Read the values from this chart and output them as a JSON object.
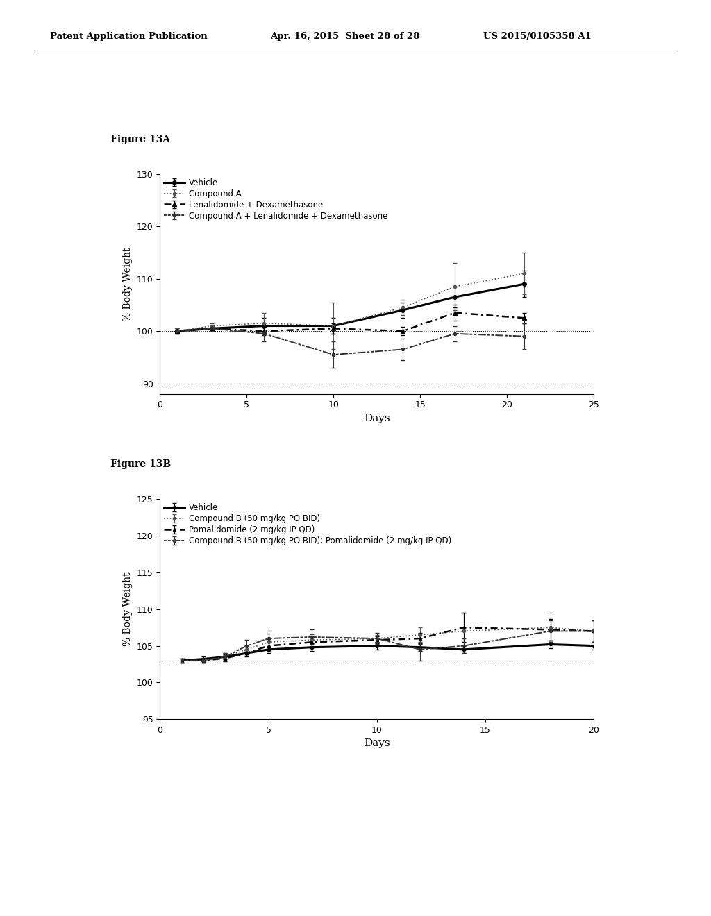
{
  "header_left": "Patent Application Publication",
  "header_mid": "Apr. 16, 2015  Sheet 28 of 28",
  "header_right": "US 2015/0105358 A1",
  "figA_label": "Figure 13A",
  "figB_label": "Figure 13B",
  "figA": {
    "xlabel": "Days",
    "ylabel": "% Body Weight",
    "xlim": [
      0,
      25
    ],
    "ylim": [
      88,
      130
    ],
    "yticks": [
      90,
      100,
      110,
      120,
      130
    ],
    "xticks": [
      0,
      5,
      10,
      15,
      20,
      25
    ],
    "hlines": [
      100,
      90
    ],
    "legend": [
      "Vehicle",
      "Compound A",
      "Lenalidomide + Dexamethasone",
      "Compound A + Lenalidomide + Dexamethasone"
    ],
    "series": {
      "vehicle": {
        "x": [
          1,
          3,
          6,
          10,
          14,
          17,
          21
        ],
        "y": [
          100.0,
          100.5,
          101.0,
          101.0,
          104.0,
          106.5,
          109.0
        ],
        "yerr": [
          0.5,
          0.5,
          1.5,
          1.5,
          1.5,
          2.0,
          2.5
        ]
      },
      "compound_a": {
        "x": [
          1,
          3,
          6,
          10,
          14,
          17,
          21
        ],
        "y": [
          100.0,
          101.0,
          101.5,
          101.0,
          104.5,
          108.5,
          111.0
        ],
        "yerr": [
          0.5,
          0.5,
          2.0,
          4.5,
          1.5,
          4.5,
          4.0
        ]
      },
      "lenali_dexa": {
        "x": [
          1,
          3,
          6,
          10,
          14,
          17,
          21
        ],
        "y": [
          100.0,
          100.5,
          100.0,
          100.5,
          100.0,
          103.5,
          102.5
        ],
        "yerr": [
          0.3,
          0.5,
          0.8,
          1.0,
          0.8,
          1.5,
          1.0
        ]
      },
      "compound_a_lenali_dexa": {
        "x": [
          1,
          3,
          6,
          10,
          14,
          17,
          21
        ],
        "y": [
          100.0,
          100.5,
          99.5,
          95.5,
          96.5,
          99.5,
          99.0
        ],
        "yerr": [
          0.3,
          0.5,
          1.5,
          2.5,
          2.0,
          1.5,
          2.5
        ]
      }
    }
  },
  "figB": {
    "xlabel": "Days",
    "ylabel": "% Body Weight",
    "xlim": [
      0,
      20
    ],
    "ylim": [
      95,
      125
    ],
    "yticks": [
      95,
      100,
      105,
      110,
      115,
      120,
      125
    ],
    "xticks": [
      0,
      5,
      10,
      15,
      20
    ],
    "hlines": [
      103.0
    ],
    "legend": [
      "Vehicle",
      "Compound B (50 mg/kg PO BID)",
      "Pomalidomide (2 mg/kg IP QD)",
      "Compound B (50 mg/kg PO BID); Pomalidomide (2 mg/kg IP QD)"
    ],
    "series": {
      "vehicle": {
        "x": [
          1,
          2,
          3,
          4,
          5,
          7,
          10,
          12,
          14,
          18,
          20
        ],
        "y": [
          103.0,
          103.2,
          103.5,
          104.0,
          104.5,
          104.8,
          105.0,
          104.8,
          104.5,
          105.2,
          105.0
        ],
        "yerr": [
          0.3,
          0.3,
          0.3,
          0.4,
          0.5,
          0.5,
          0.5,
          0.5,
          0.5,
          0.5,
          0.5
        ]
      },
      "compound_b": {
        "x": [
          1,
          2,
          3,
          4,
          5,
          7,
          10,
          12,
          14,
          18,
          20
        ],
        "y": [
          103.0,
          103.0,
          103.5,
          104.5,
          105.5,
          105.8,
          106.0,
          106.5,
          107.0,
          107.5,
          107.0
        ],
        "yerr": [
          0.3,
          0.3,
          0.5,
          0.6,
          1.2,
          0.8,
          0.5,
          1.0,
          2.5,
          2.0,
          1.5
        ]
      },
      "pomalidomide": {
        "x": [
          1,
          2,
          3,
          4,
          5,
          7,
          10,
          12,
          14,
          18,
          20
        ],
        "y": [
          103.0,
          103.0,
          103.3,
          104.0,
          105.0,
          105.5,
          105.8,
          106.0,
          107.5,
          107.2,
          107.0
        ],
        "yerr": [
          0.3,
          0.3,
          0.4,
          0.5,
          0.6,
          0.6,
          0.5,
          0.8,
          2.0,
          1.5,
          1.5
        ]
      },
      "compound_b_pomali": {
        "x": [
          1,
          2,
          3,
          4,
          5,
          7,
          10,
          12,
          14,
          18,
          20
        ],
        "y": [
          103.0,
          103.0,
          103.5,
          105.0,
          106.0,
          106.2,
          106.0,
          104.5,
          105.0,
          107.0,
          107.0
        ],
        "yerr": [
          0.3,
          0.3,
          0.5,
          0.8,
          1.0,
          1.0,
          0.8,
          1.5,
          1.0,
          1.5,
          1.5
        ]
      }
    }
  },
  "bg_color": "#ffffff",
  "text_color": "#000000"
}
